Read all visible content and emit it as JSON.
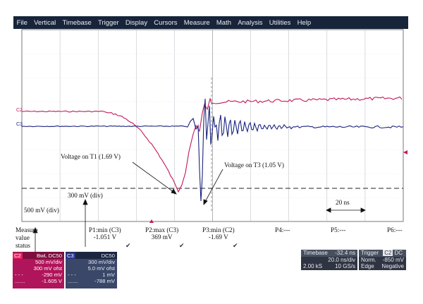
{
  "menu": [
    "File",
    "Vertical",
    "Timebase",
    "Trigger",
    "Display",
    "Cursors",
    "Measure",
    "Math",
    "Analysis",
    "Utilities",
    "Help"
  ],
  "channel_tags": {
    "c2": "C2",
    "c3": "C3"
  },
  "colors": {
    "c2": "#c2185b",
    "c3": "#1a237e",
    "grid": "#9aa0a6"
  },
  "annotations": {
    "t1": "Voltage on T1 (1.69 V)",
    "t3": "Voltage on T3 (1.05 V)",
    "div300": "300 mV (div)",
    "div500": "500 mV (div)",
    "ns20": "20 ns",
    "status": [
      "Measure",
      "value",
      "status"
    ]
  },
  "measurements": [
    {
      "name": "P1:min (C3)",
      "value": "-1.051 V",
      "ok": true
    },
    {
      "name": "P2:max (C3)",
      "value": "369 mV",
      "ok": true
    },
    {
      "name": "P3:min (C2)",
      "value": "-1.69 V",
      "ok": true
    },
    {
      "name": "P4:---",
      "value": "",
      "ok": false
    },
    {
      "name": "P5:---",
      "value": "",
      "ok": false
    },
    {
      "name": "P6:---",
      "value": "",
      "ok": false
    }
  ],
  "check_mark": "✔",
  "ch_c2": {
    "tag": "C2",
    "mode": "BwL DC50",
    "vdiv": "500 mV/div",
    "ofst": "300 mV ofst",
    "a": "-290 mV",
    "b": "-1.605 V"
  },
  "ch_c3": {
    "tag": "C3",
    "mode": "DC50",
    "vdiv": "300 mV/div",
    "ofst": "5.0 mV ofst",
    "a": "1 mV",
    "b": "-788 mV"
  },
  "timebase": {
    "label": "Timebase",
    "delay": "-32.4 ns",
    "tdiv": "20.0 ns/div",
    "samples": "2.00 kS",
    "rate": "10 GS/s"
  },
  "trigger": {
    "label": "Trigger",
    "src": "C2",
    "coupling": "DC",
    "mode": "Norm.",
    "level": "-850 mV",
    "type": "Edge",
    "slope": "Negative"
  }
}
